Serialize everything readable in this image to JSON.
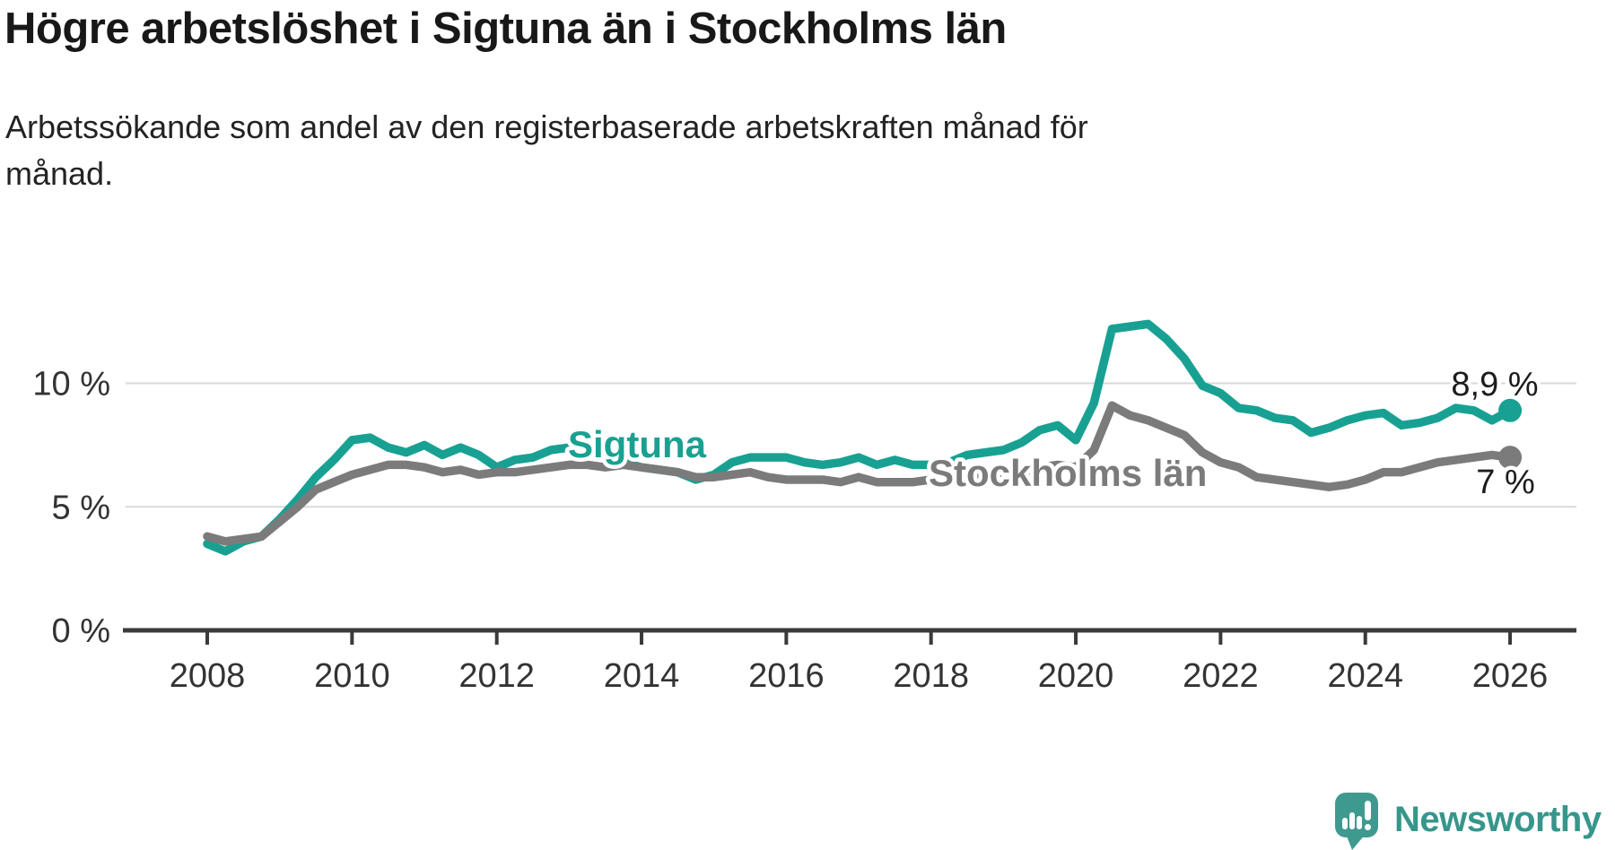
{
  "header": {
    "title": "Högre arbetslöshet i Sigtuna än i Stockholms län",
    "subtitle": "Arbetssökande som andel av den registerbaserade arbetskraften månad för månad."
  },
  "footer": {
    "brand": "Newsworthy"
  },
  "colors": {
    "sigtuna_teal": "#18a192",
    "stockholm_gray": "#7b7b7b",
    "axis": "#3a3a3a",
    "grid": "#dadada",
    "logo_teal": "#37968b"
  },
  "chart_data": {
    "type": "line",
    "title": "Högre arbetslöshet i Sigtuna än i Stockholms län",
    "xlabel": "",
    "ylabel": "",
    "grid": "horizontal",
    "legend_position": "inline-labels",
    "xlim": [
      2007.9,
      2026.9
    ],
    "ylim": [
      0,
      13.5
    ],
    "x_ticks": [
      2008,
      2010,
      2012,
      2014,
      2016,
      2018,
      2020,
      2022,
      2024,
      2026
    ],
    "y_ticks": [
      {
        "value": 0,
        "label": "0 %"
      },
      {
        "value": 5,
        "label": "5 %"
      },
      {
        "value": 10,
        "label": "10 %"
      }
    ],
    "x": [
      2008.0,
      2008.25,
      2008.5,
      2008.75,
      2009.0,
      2009.25,
      2009.5,
      2009.75,
      2010.0,
      2010.25,
      2010.5,
      2010.75,
      2011.0,
      2011.25,
      2011.5,
      2011.75,
      2012.0,
      2012.25,
      2012.5,
      2012.75,
      2013.0,
      2013.25,
      2013.5,
      2013.75,
      2014.0,
      2014.25,
      2014.5,
      2014.75,
      2015.0,
      2015.25,
      2015.5,
      2015.75,
      2016.0,
      2016.25,
      2016.5,
      2016.75,
      2017.0,
      2017.25,
      2017.5,
      2017.75,
      2018.0,
      2018.25,
      2018.5,
      2018.75,
      2019.0,
      2019.25,
      2019.5,
      2019.75,
      2020.0,
      2020.25,
      2020.5,
      2020.75,
      2021.0,
      2021.25,
      2021.5,
      2021.75,
      2022.0,
      2022.25,
      2022.5,
      2022.75,
      2023.0,
      2023.25,
      2023.5,
      2023.75,
      2024.0,
      2024.25,
      2024.5,
      2024.75,
      2025.0,
      2025.25,
      2025.5,
      2025.75,
      2026.0
    ],
    "series": [
      {
        "id": "sigtuna",
        "name": "Sigtuna",
        "color": "#18a192",
        "end_label": "8,9 %",
        "end_value": 8.9,
        "values": [
          3.5,
          3.2,
          3.6,
          3.8,
          4.5,
          5.3,
          6.2,
          6.9,
          7.7,
          7.8,
          7.4,
          7.2,
          7.5,
          7.1,
          7.4,
          7.1,
          6.6,
          6.9,
          7.0,
          7.3,
          7.4,
          7.2,
          7.0,
          6.8,
          6.6,
          6.5,
          6.4,
          6.1,
          6.3,
          6.8,
          7.0,
          7.0,
          7.0,
          6.8,
          6.7,
          6.8,
          7.0,
          6.7,
          6.9,
          6.7,
          6.7,
          6.8,
          7.1,
          7.2,
          7.3,
          7.6,
          8.1,
          8.3,
          7.7,
          9.2,
          12.2,
          12.3,
          12.4,
          11.8,
          11.0,
          9.9,
          9.6,
          9.0,
          8.9,
          8.6,
          8.5,
          8.0,
          8.2,
          8.5,
          8.7,
          8.8,
          8.3,
          8.4,
          8.6,
          9.0,
          8.9,
          8.5,
          8.9
        ]
      },
      {
        "id": "stockholms-lan",
        "name": "Stockholms län",
        "color": "#7b7b7b",
        "end_label": "7 %",
        "end_value": 7.0,
        "values": [
          3.8,
          3.6,
          3.7,
          3.8,
          4.4,
          5.0,
          5.7,
          6.0,
          6.3,
          6.5,
          6.7,
          6.7,
          6.6,
          6.4,
          6.5,
          6.3,
          6.4,
          6.4,
          6.5,
          6.6,
          6.7,
          6.7,
          6.6,
          6.7,
          6.6,
          6.5,
          6.4,
          6.2,
          6.2,
          6.3,
          6.4,
          6.2,
          6.1,
          6.1,
          6.1,
          6.0,
          6.2,
          6.0,
          6.0,
          6.0,
          6.1,
          6.1,
          6.2,
          6.2,
          6.3,
          6.4,
          6.6,
          6.7,
          6.6,
          7.3,
          9.1,
          8.7,
          8.5,
          8.2,
          7.9,
          7.2,
          6.8,
          6.6,
          6.2,
          6.1,
          6.0,
          5.9,
          5.8,
          5.9,
          6.1,
          6.4,
          6.4,
          6.6,
          6.8,
          6.9,
          7.0,
          7.1,
          7.0
        ]
      }
    ]
  }
}
